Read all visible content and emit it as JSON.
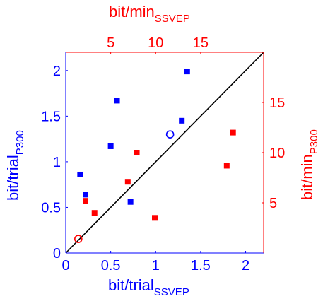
{
  "chart_data": {
    "type": "scatter",
    "colors": {
      "blue": "#0000ff",
      "red": "#ff0000",
      "identity_line": "#000000"
    },
    "axes": {
      "bottom": {
        "label": "bit/trial",
        "label_sub": "SSVEP",
        "range": [
          0,
          2.2
        ],
        "ticks": [
          0,
          0.5,
          1,
          1.5,
          2
        ],
        "tick_labels": [
          "0",
          "0.5",
          "1",
          "1.5",
          "2"
        ],
        "color": "blue"
      },
      "left": {
        "label": "bit/trial",
        "label_sub": "P300",
        "range": [
          0,
          2.2
        ],
        "ticks": [
          0,
          0.5,
          1,
          1.5,
          2
        ],
        "tick_labels": [
          "0",
          "0.5",
          "1",
          "1.5",
          "2"
        ],
        "color": "blue"
      },
      "top": {
        "label": "bit/min",
        "label_sub": "SSVEP",
        "range": [
          0,
          22
        ],
        "ticks": [
          5,
          10,
          15
        ],
        "tick_labels": [
          "5",
          "10",
          "15"
        ],
        "color": "red"
      },
      "right": {
        "label": "bit/min",
        "label_sub": "P300",
        "range": [
          0,
          20
        ],
        "ticks": [
          5,
          10,
          15
        ],
        "tick_labels": [
          "5",
          "10",
          "15"
        ],
        "color": "red"
      }
    },
    "series": [
      {
        "axes": [
          "bottom",
          "left"
        ],
        "color": "blue",
        "marker": "square",
        "points": [
          {
            "x": 0.16,
            "y": 0.86
          },
          {
            "x": 0.22,
            "y": 0.64
          },
          {
            "x": 0.5,
            "y": 1.17
          },
          {
            "x": 0.57,
            "y": 1.67
          },
          {
            "x": 0.72,
            "y": 0.56
          },
          {
            "x": 1.29,
            "y": 1.45
          },
          {
            "x": 1.35,
            "y": 1.99
          }
        ]
      },
      {
        "axes": [
          "bottom",
          "left"
        ],
        "color": "blue",
        "marker": "circle",
        "points": [
          {
            "x": 1.16,
            "y": 1.3
          }
        ]
      },
      {
        "axes": [
          "top",
          "right"
        ],
        "color": "red",
        "marker": "square",
        "points": [
          {
            "x": 2.2,
            "y": 5.2
          },
          {
            "x": 3.2,
            "y": 4.0
          },
          {
            "x": 6.9,
            "y": 7.1
          },
          {
            "x": 7.9,
            "y": 10.0
          },
          {
            "x": 9.9,
            "y": 3.5
          },
          {
            "x": 17.9,
            "y": 8.7
          },
          {
            "x": 18.6,
            "y": 12.0
          }
        ]
      },
      {
        "axes": [
          "top",
          "right"
        ],
        "color": "red",
        "marker": "circle",
        "points": [
          {
            "x": 1.4,
            "y": 1.4
          }
        ]
      }
    ],
    "reference_line": {
      "type": "identity",
      "from": [
        0,
        0
      ],
      "to": [
        2.2,
        2.2
      ]
    }
  }
}
